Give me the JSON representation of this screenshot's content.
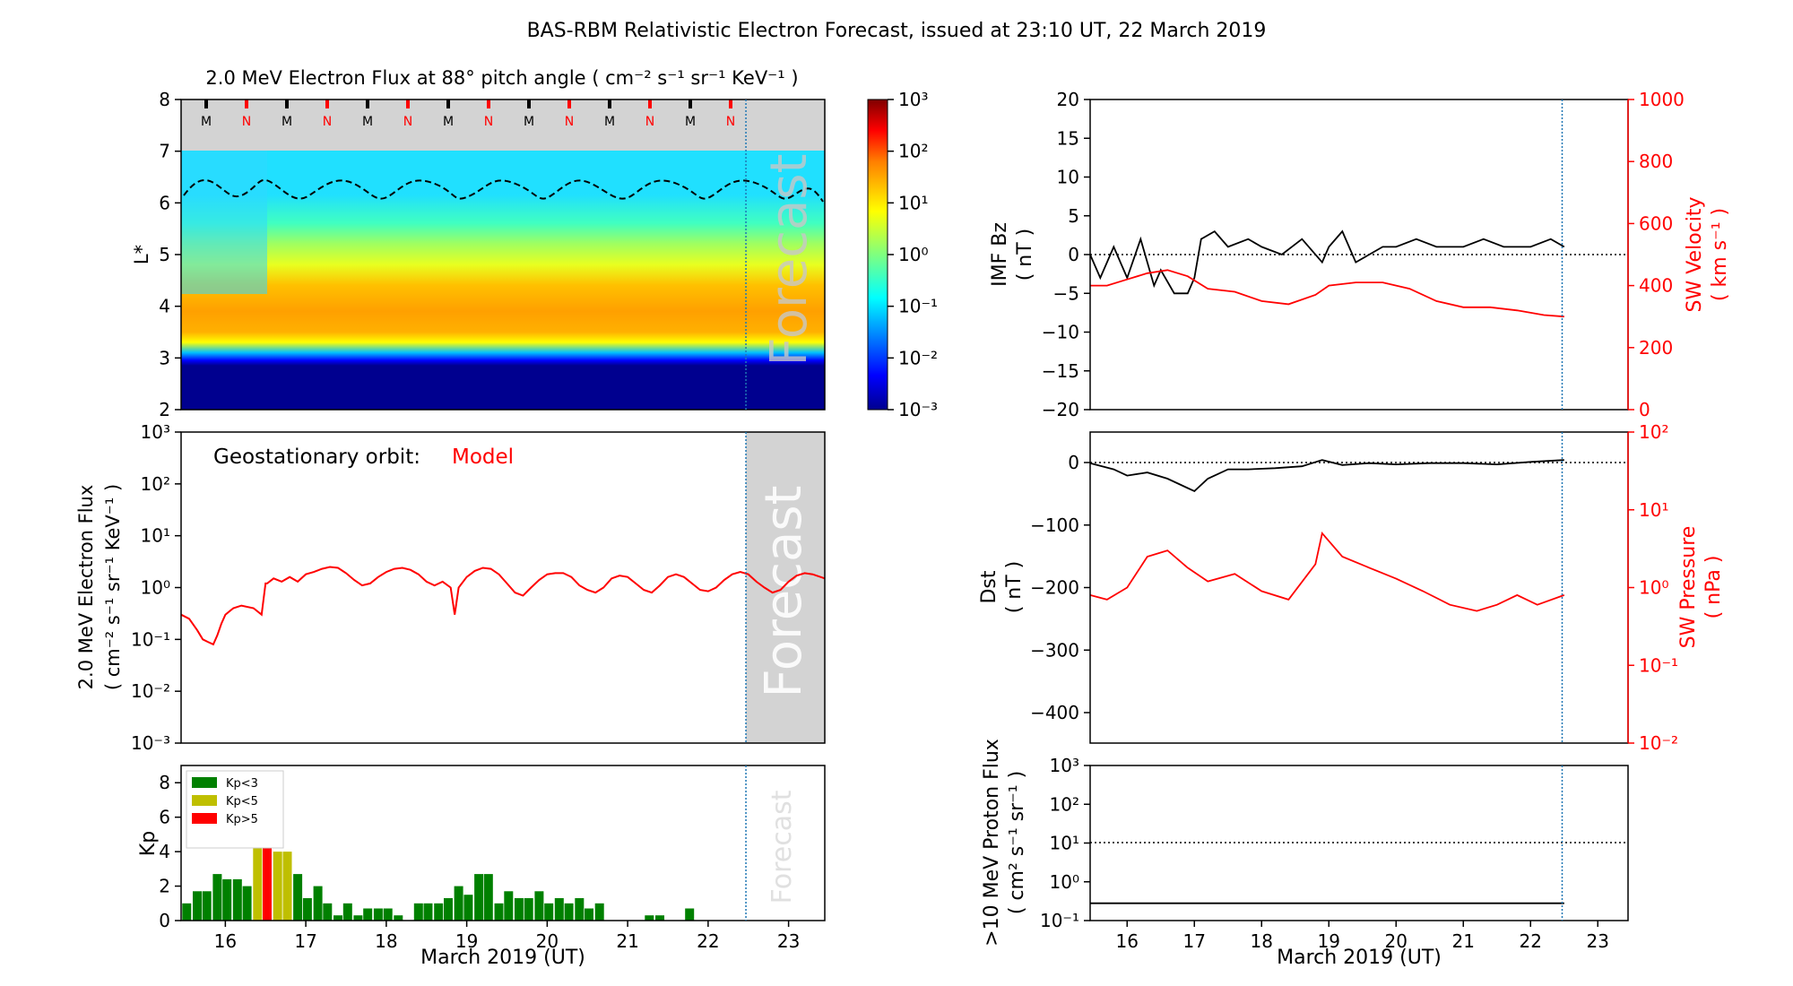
{
  "title": "BAS-RBM Relativistic Electron Forecast, issued at 23:10 UT, 22 March 2019",
  "colors": {
    "model": "#ff0000",
    "black": "#000000",
    "forecast_shade": "#d3d3d3",
    "forecast_line": "#1f77b4",
    "kp_low": "#008000",
    "kp_mid": "#bfbf00",
    "kp_high": "#ff0000"
  },
  "date_ticks": [
    "16",
    "17",
    "18",
    "19",
    "20",
    "21",
    "22",
    "23"
  ],
  "xlabel": "March 2019 (UT)",
  "chart_data": [
    {
      "id": "lstar",
      "type": "heatmap",
      "title": "2.0 MeV Electron Flux at 88° pitch angle ( cm⁻² s⁻¹ sr⁻¹ KeV⁻¹ )",
      "ylabel": "L*",
      "xlim": [
        15.45,
        23.45
      ],
      "ylim": [
        2,
        8
      ],
      "yticks": [
        "2",
        "3",
        "4",
        "5",
        "6",
        "7",
        "8"
      ],
      "colorbar": {
        "scale": "log",
        "range": [
          0.001,
          1000
        ],
        "ticks": [
          "10⁻³",
          "10⁻²",
          "10⁻¹",
          "10⁰",
          "10¹",
          "10²",
          "10³"
        ]
      },
      "mlt_markers": [
        "M",
        "N",
        "M",
        "N",
        "M",
        "N",
        "M",
        "N",
        "M",
        "N",
        "M",
        "N",
        "M",
        "N"
      ],
      "overlay_text": "Forecast",
      "forecast_start": 22.47
    },
    {
      "id": "geo",
      "type": "line",
      "annotation_label": "Geostationary orbit:",
      "annotation_series": "Model",
      "ylabel_lines": [
        "2.0 MeV Electron Flux",
        "( cm⁻² s⁻¹ sr⁻¹ KeV⁻¹ )"
      ],
      "ylim": [
        0.001,
        1000
      ],
      "scale": "log",
      "yticks": [
        "10⁻³",
        "10⁻²",
        "10⁻¹",
        "10⁰",
        "10¹",
        "10²",
        "10³"
      ],
      "overlay_text": "Forecast",
      "x": [
        15.45,
        15.55,
        15.65,
        15.72,
        15.78,
        15.85,
        15.9,
        15.95,
        16.0,
        16.1,
        16.2,
        16.35,
        16.45,
        16.5,
        16.52,
        16.6,
        16.7,
        16.8,
        16.9,
        17.0,
        17.1,
        17.2,
        17.3,
        17.4,
        17.5,
        17.6,
        17.7,
        17.8,
        17.9,
        18.0,
        18.1,
        18.2,
        18.3,
        18.4,
        18.5,
        18.6,
        18.7,
        18.8,
        18.85,
        18.9,
        19.0,
        19.1,
        19.2,
        19.3,
        19.4,
        19.5,
        19.6,
        19.7,
        19.8,
        19.9,
        20.0,
        20.1,
        20.2,
        20.3,
        20.4,
        20.5,
        20.6,
        20.7,
        20.8,
        20.9,
        21.0,
        21.1,
        21.2,
        21.3,
        21.4,
        21.5,
        21.6,
        21.7,
        21.8,
        21.9,
        22.0,
        22.1,
        22.2,
        22.3,
        22.4,
        22.5,
        22.6,
        22.7,
        22.8,
        22.9,
        23.0,
        23.1,
        23.2,
        23.3,
        23.45
      ],
      "y": [
        0.3,
        0.25,
        0.15,
        0.1,
        0.09,
        0.08,
        0.12,
        0.2,
        0.3,
        0.4,
        0.45,
        0.4,
        0.3,
        1.2,
        1.2,
        1.5,
        1.3,
        1.6,
        1.3,
        1.8,
        2.0,
        2.3,
        2.5,
        2.4,
        1.9,
        1.4,
        1.1,
        1.2,
        1.6,
        2.0,
        2.3,
        2.4,
        2.2,
        1.8,
        1.3,
        1.1,
        1.3,
        1.0,
        0.3,
        1.0,
        1.6,
        2.1,
        2.4,
        2.3,
        1.8,
        1.2,
        0.8,
        0.7,
        1.0,
        1.4,
        1.8,
        1.9,
        1.9,
        1.6,
        1.1,
        0.9,
        0.8,
        1.0,
        1.5,
        1.7,
        1.6,
        1.2,
        0.9,
        0.8,
        1.1,
        1.6,
        1.8,
        1.6,
        1.2,
        0.9,
        0.85,
        1.0,
        1.4,
        1.8,
        2.0,
        1.8,
        1.3,
        1.0,
        0.8,
        0.9,
        1.3,
        1.7,
        1.9,
        1.8,
        1.5
      ]
    },
    {
      "id": "kp",
      "type": "bar",
      "ylabel": "Kp",
      "ylim": [
        0,
        9
      ],
      "yticks": [
        "0",
        "2",
        "4",
        "6",
        "8"
      ],
      "legend": [
        "Kp<3",
        "Kp<5",
        "Kp>5"
      ],
      "overlay_text": "Forecast",
      "x": [
        15.52,
        15.65,
        15.77,
        15.9,
        16.02,
        16.15,
        16.27,
        16.4,
        16.52,
        16.65,
        16.77,
        16.9,
        17.02,
        17.15,
        17.27,
        17.4,
        17.52,
        17.65,
        17.77,
        17.9,
        18.02,
        18.15,
        18.27,
        18.4,
        18.52,
        18.65,
        18.77,
        18.9,
        19.02,
        19.15,
        19.27,
        19.4,
        19.52,
        19.65,
        19.77,
        19.9,
        20.02,
        20.15,
        20.27,
        20.4,
        20.52,
        20.65,
        20.77,
        20.9,
        21.02,
        21.15,
        21.27,
        21.4,
        21.52,
        21.65,
        21.77
      ],
      "values": [
        1.0,
        1.7,
        1.7,
        2.7,
        2.4,
        2.4,
        2.0,
        4.3,
        5.0,
        4.0,
        4.0,
        2.7,
        1.3,
        2.0,
        1.0,
        0.3,
        1.0,
        0.3,
        0.7,
        0.7,
        0.7,
        0.3,
        0.0,
        1.0,
        1.0,
        1.0,
        1.3,
        2.0,
        1.5,
        2.7,
        2.7,
        1.0,
        1.7,
        1.3,
        1.3,
        1.7,
        1.0,
        1.3,
        1.0,
        1.3,
        0.7,
        1.0,
        0.0,
        0.0,
        0.0,
        0.0,
        0.3,
        0.3,
        0.0,
        0.0,
        0.7
      ]
    },
    {
      "id": "bz",
      "type": "line",
      "ylabel_lines": [
        "IMF Bz",
        "( nT )"
      ],
      "y2label_lines": [
        "SW Velocity",
        "( km s⁻¹ )"
      ],
      "ylim": [
        -20,
        20
      ],
      "y2lim": [
        0,
        1000
      ],
      "yticks": [
        "−20",
        "−15",
        "−10",
        "−5",
        "0",
        "5",
        "10",
        "15",
        "20"
      ],
      "y2ticks": [
        "0",
        "200",
        "400",
        "600",
        "800",
        "1000"
      ],
      "series": [
        {
          "name": "",
          "axis": "left",
          "x": [
            15.45,
            15.6,
            15.8,
            16.0,
            16.2,
            16.4,
            16.5,
            16.7,
            16.9,
            17.0,
            17.1,
            17.3,
            17.5,
            17.8,
            18.0,
            18.3,
            18.6,
            18.9,
            19.0,
            19.2,
            19.4,
            19.6,
            19.8,
            20.0,
            20.3,
            20.6,
            21.0,
            21.3,
            21.6,
            22.0,
            22.3,
            22.5
          ],
          "y": [
            0,
            -3,
            1,
            -3,
            2,
            -4,
            -2,
            -5,
            -5,
            -3,
            2,
            3,
            1,
            2,
            1,
            0,
            2,
            -1,
            1,
            3,
            -1,
            0,
            1,
            1,
            2,
            1,
            1,
            2,
            1,
            1,
            2,
            1
          ]
        },
        {
          "name": "",
          "axis": "right",
          "x": [
            15.45,
            15.7,
            16.0,
            16.3,
            16.6,
            16.9,
            17.2,
            17.6,
            18.0,
            18.4,
            18.8,
            19.0,
            19.4,
            19.8,
            20.2,
            20.6,
            21.0,
            21.4,
            21.8,
            22.2,
            22.5
          ],
          "y": [
            400,
            400,
            420,
            440,
            450,
            430,
            390,
            380,
            350,
            340,
            370,
            400,
            410,
            410,
            390,
            350,
            330,
            330,
            320,
            305,
            300
          ]
        }
      ]
    },
    {
      "id": "dst",
      "type": "line",
      "ylabel_lines": [
        "Dst",
        "( nT )"
      ],
      "y2label_lines": [
        "SW Pressure",
        "( nPa )"
      ],
      "ylim": [
        -450,
        50
      ],
      "y2lim": [
        0.01,
        100
      ],
      "yticks": [
        "−400",
        "−300",
        "−200",
        "−100",
        "0"
      ],
      "y2ticks": [
        "10⁻²",
        "10⁻¹",
        "10⁰",
        "10¹",
        "10²"
      ],
      "series": [
        {
          "name": "",
          "axis": "left",
          "x": [
            15.45,
            15.8,
            16.0,
            16.3,
            16.6,
            16.9,
            17.0,
            17.2,
            17.5,
            17.8,
            18.2,
            18.6,
            18.9,
            19.2,
            19.6,
            20.0,
            20.5,
            21.0,
            21.5,
            22.0,
            22.5
          ],
          "y": [
            0,
            -10,
            -20,
            -15,
            -25,
            -40,
            -45,
            -25,
            -10,
            -10,
            -8,
            -5,
            5,
            -3,
            0,
            -2,
            0,
            0,
            -2,
            2,
            5
          ]
        },
        {
          "name": "",
          "axis": "right",
          "x": [
            15.45,
            15.7,
            16.0,
            16.3,
            16.6,
            16.9,
            17.2,
            17.6,
            18.0,
            18.4,
            18.8,
            18.9,
            19.2,
            19.6,
            20.0,
            20.4,
            20.8,
            21.2,
            21.5,
            21.8,
            22.1,
            22.5
          ],
          "y": [
            0.8,
            0.7,
            1.0,
            2.5,
            3.0,
            1.8,
            1.2,
            1.5,
            0.9,
            0.7,
            2.0,
            5.0,
            2.5,
            1.8,
            1.3,
            0.9,
            0.6,
            0.5,
            0.6,
            0.8,
            0.6,
            0.8
          ]
        }
      ]
    },
    {
      "id": "proton",
      "type": "line",
      "ylabel_lines": [
        ">10 MeV Proton Flux",
        "( cm² s⁻¹ sr⁻¹ )"
      ],
      "ylim": [
        0.1,
        1000
      ],
      "scale": "log",
      "yticks": [
        "10⁻¹",
        "10⁰",
        "10¹",
        "10²",
        "10³"
      ],
      "threshold": 10,
      "series": [
        {
          "name": "",
          "x": [
            15.45,
            22.5
          ],
          "y": [
            0.28,
            0.28
          ]
        }
      ]
    }
  ]
}
